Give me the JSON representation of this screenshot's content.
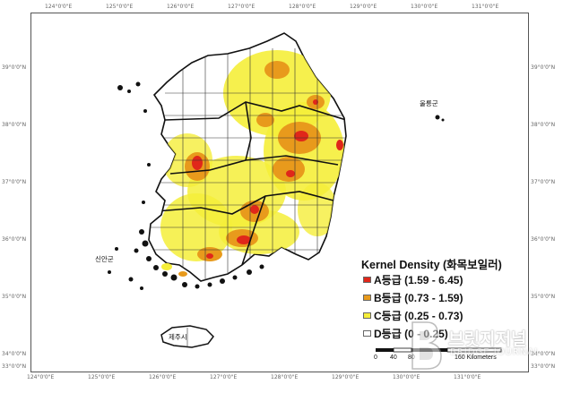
{
  "map": {
    "legend": {
      "title": "Kernel Density (화목보일러)",
      "items": [
        {
          "label": "A등급 (1.59 - 6.45)",
          "color": "#e0271a"
        },
        {
          "label": "B등급 (0.73 - 1.59)",
          "color": "#e89a1c"
        },
        {
          "label": "C등급 (0.25 - 0.73)",
          "color": "#f5ee3a"
        },
        {
          "label": "D등급 (0 - 0.25)",
          "color": "#ffffff"
        }
      ]
    },
    "scale_bar": {
      "ticks": [
        "0",
        "40",
        "80",
        "160 Kilometers"
      ]
    },
    "graticule": {
      "top": [
        "124°0'0\"E",
        "125°0'0\"E",
        "126°0'0\"E",
        "127°0'0\"E",
        "128°0'0\"E",
        "129°0'0\"E",
        "130°0'0\"E",
        "131°0'0\"E"
      ],
      "bottom": [
        "124°0'0\"E",
        "125°0'0\"E",
        "126°0'0\"E",
        "127°0'0\"E",
        "128°0'0\"E",
        "129°0'0\"E",
        "130°0'0\"E",
        "131°0'0\"E"
      ],
      "left": [
        "39°0'0\"N",
        "38°0'0\"N",
        "37°0'0\"N",
        "36°0'0\"N",
        "35°0'0\"N",
        "34°0'0\"N",
        "33°0'0\"N"
      ],
      "right": [
        "39°0'0\"N",
        "38°0'0\"N",
        "37°0'0\"N",
        "36°0'0\"N",
        "35°0'0\"N",
        "34°0'0\"N",
        "33°0'0\"N"
      ]
    },
    "place_labels": {
      "jeju": "제주시",
      "sinan": "신안군",
      "ulleung": "울릉군"
    }
  },
  "watermark": {
    "text": "브릿지저널",
    "subtext": "BRIDGE JOURNAL"
  }
}
